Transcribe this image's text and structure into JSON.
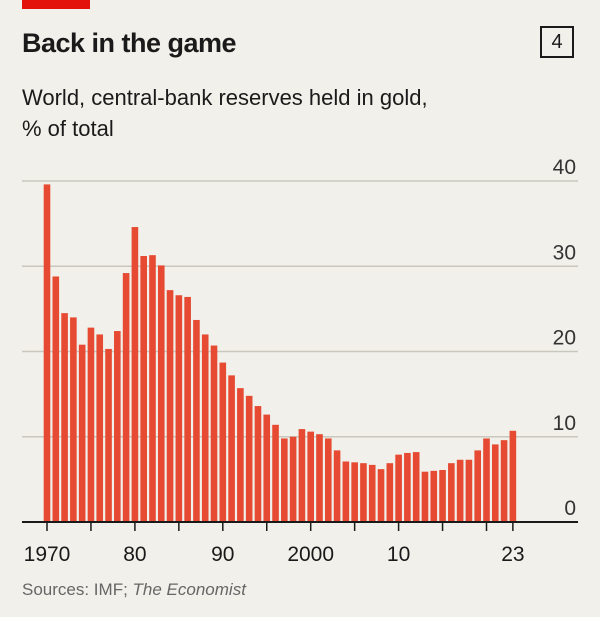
{
  "header": {
    "title": "Back in the game",
    "chart_number": "4",
    "subtitle": "World, central-bank reserves held in gold, % of total"
  },
  "source": {
    "prefix": "Sources: IMF; ",
    "italic": "The Economist"
  },
  "colors": {
    "bar": "#e64a32",
    "accent": "#e3120b",
    "grid": "#c9c7be",
    "background": "#f1f0ea"
  },
  "chart_data": {
    "type": "bar",
    "title": "Back in the game",
    "subtitle": "World, central-bank reserves held in gold, % of total",
    "xlabel": "",
    "ylabel": "",
    "ylim": [
      0,
      40
    ],
    "yticks": [
      0,
      10,
      20,
      30,
      40
    ],
    "xticks": [
      {
        "year": 1970,
        "label": "1970"
      },
      {
        "year": 1975,
        "label": ""
      },
      {
        "year": 1980,
        "label": "80"
      },
      {
        "year": 1985,
        "label": ""
      },
      {
        "year": 1990,
        "label": "90"
      },
      {
        "year": 1995,
        "label": ""
      },
      {
        "year": 2000,
        "label": "2000"
      },
      {
        "year": 2005,
        "label": ""
      },
      {
        "year": 2010,
        "label": "10"
      },
      {
        "year": 2015,
        "label": ""
      },
      {
        "year": 2020,
        "label": ""
      },
      {
        "year": 2023,
        "label": "23"
      }
    ],
    "grid": true,
    "y_axis_side": "right",
    "categories": [
      1970,
      1971,
      1972,
      1973,
      1974,
      1975,
      1976,
      1977,
      1978,
      1979,
      1980,
      1981,
      1982,
      1983,
      1984,
      1985,
      1986,
      1987,
      1988,
      1989,
      1990,
      1991,
      1992,
      1993,
      1994,
      1995,
      1996,
      1997,
      1998,
      1999,
      2000,
      2001,
      2002,
      2003,
      2004,
      2005,
      2006,
      2007,
      2008,
      2009,
      2010,
      2011,
      2012,
      2013,
      2014,
      2015,
      2016,
      2017,
      2018,
      2019,
      2020,
      2021,
      2022,
      2023
    ],
    "values": [
      39.6,
      28.8,
      24.5,
      24.0,
      20.8,
      22.8,
      22.0,
      20.3,
      22.4,
      29.2,
      34.6,
      31.2,
      31.3,
      30.1,
      27.2,
      26.6,
      26.4,
      23.7,
      22.0,
      20.7,
      18.7,
      17.2,
      15.7,
      14.8,
      13.6,
      12.6,
      11.4,
      9.8,
      10.0,
      10.9,
      10.6,
      10.3,
      9.8,
      8.4,
      7.1,
      7.0,
      6.9,
      6.7,
      6.2,
      6.9,
      7.9,
      8.1,
      8.2,
      5.9,
      6.0,
      6.1,
      6.9,
      7.3,
      7.3,
      8.4,
      9.8,
      9.1,
      9.6,
      10.7
    ]
  }
}
